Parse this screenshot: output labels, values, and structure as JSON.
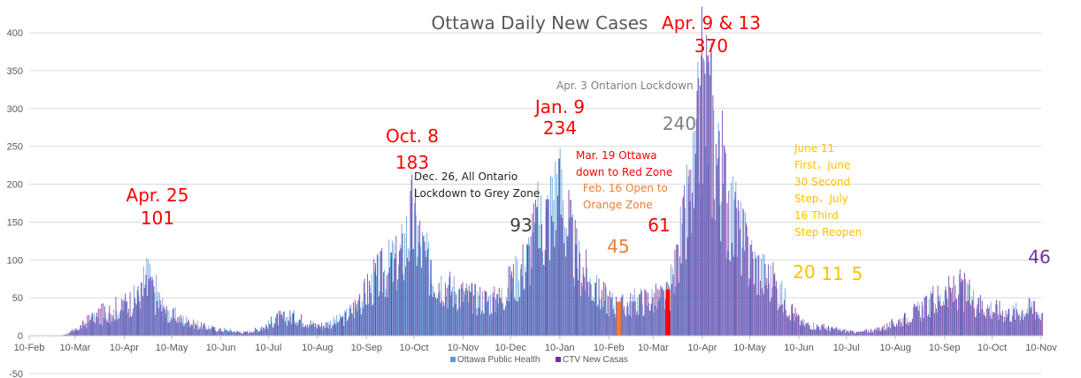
{
  "colors": {
    "ottawa": "#5b9bd5",
    "ctv": "#7030a0",
    "red": "#ff0000",
    "orange": "#ed7d31",
    "gold": "#ffc000",
    "gray": "#595959",
    "black": "#222222",
    "grid": "#d9d9d9"
  },
  "chart_data": {
    "type": "bar",
    "title": "Ottawa Daily New Cases",
    "ylim": [
      -50,
      400
    ],
    "yticks": [
      -50,
      0,
      50,
      100,
      150,
      200,
      250,
      300,
      350,
      400
    ],
    "xlim": [
      "2020-02-10",
      "2021-11-10"
    ],
    "xticks": [
      {
        "date": "2020-02-10",
        "label": "10-Feb"
      },
      {
        "date": "2020-03-10",
        "label": "10-Mar"
      },
      {
        "date": "2020-04-10",
        "label": "10-Apr"
      },
      {
        "date": "2020-05-10",
        "label": "10-May"
      },
      {
        "date": "2020-06-10",
        "label": "10-Jun"
      },
      {
        "date": "2020-07-10",
        "label": "10-Jul"
      },
      {
        "date": "2020-08-10",
        "label": "10-Aug"
      },
      {
        "date": "2020-09-10",
        "label": "10-Sep"
      },
      {
        "date": "2020-10-10",
        "label": "10-Oct"
      },
      {
        "date": "2020-11-10",
        "label": "10-Nov"
      },
      {
        "date": "2020-12-10",
        "label": "10-Dec"
      },
      {
        "date": "2021-01-10",
        "label": "10-Jan"
      },
      {
        "date": "2021-02-10",
        "label": "10-Feb"
      },
      {
        "date": "2021-03-10",
        "label": "10-Mar"
      },
      {
        "date": "2021-04-10",
        "label": "10-Apr"
      },
      {
        "date": "2021-05-10",
        "label": "10-May"
      },
      {
        "date": "2021-06-10",
        "label": "10-Jun"
      },
      {
        "date": "2021-07-10",
        "label": "10-Jul"
      },
      {
        "date": "2021-08-10",
        "label": "10-Aug"
      },
      {
        "date": "2021-09-10",
        "label": "10-Sep"
      },
      {
        "date": "2021-10-10",
        "label": "10-Oct"
      },
      {
        "date": "2021-11-10",
        "label": "10-Nov"
      }
    ],
    "grid": true,
    "legend_position": "bottom",
    "series": [
      {
        "name": "Ottawa Public Health",
        "color": "#5b9bd5",
        "points": [
          [
            "2020-02-10",
            0
          ],
          [
            "2020-03-01",
            0
          ],
          [
            "2020-03-10",
            10
          ],
          [
            "2020-03-20",
            25
          ],
          [
            "2020-03-31",
            30
          ],
          [
            "2020-04-10",
            45
          ],
          [
            "2020-04-18",
            60
          ],
          [
            "2020-04-25",
            101
          ],
          [
            "2020-05-05",
            40
          ],
          [
            "2020-05-20",
            22
          ],
          [
            "2020-06-05",
            12
          ],
          [
            "2020-06-25",
            5
          ],
          [
            "2020-07-05",
            10
          ],
          [
            "2020-07-15",
            25
          ],
          [
            "2020-07-25",
            30
          ],
          [
            "2020-08-10",
            15
          ],
          [
            "2020-08-25",
            25
          ],
          [
            "2020-09-05",
            50
          ],
          [
            "2020-09-15",
            85
          ],
          [
            "2020-09-25",
            110
          ],
          [
            "2020-10-01",
            120
          ],
          [
            "2020-10-08",
            183
          ],
          [
            "2020-10-20",
            100
          ],
          [
            "2020-11-01",
            75
          ],
          [
            "2020-11-15",
            60
          ],
          [
            "2020-12-01",
            55
          ],
          [
            "2020-12-10",
            80
          ],
          [
            "2020-12-20",
            120
          ],
          [
            "2020-12-26",
            170
          ],
          [
            "2021-01-01",
            180
          ],
          [
            "2021-01-09",
            234
          ],
          [
            "2021-01-20",
            120
          ],
          [
            "2021-02-01",
            70
          ],
          [
            "2021-02-16",
            45
          ],
          [
            "2021-03-01",
            55
          ],
          [
            "2021-03-19",
            61
          ],
          [
            "2021-03-25",
            120
          ],
          [
            "2021-04-01",
            210
          ],
          [
            "2021-04-05",
            240
          ],
          [
            "2021-04-09",
            370
          ],
          [
            "2021-04-13",
            370
          ],
          [
            "2021-04-20",
            260
          ],
          [
            "2021-04-30",
            180
          ],
          [
            "2021-05-10",
            120
          ],
          [
            "2021-05-25",
            80
          ],
          [
            "2021-06-05",
            40
          ],
          [
            "2021-06-11",
            20
          ],
          [
            "2021-06-30",
            11
          ],
          [
            "2021-07-16",
            5
          ],
          [
            "2021-08-01",
            10
          ],
          [
            "2021-08-15",
            25
          ],
          [
            "2021-09-01",
            50
          ],
          [
            "2021-09-10",
            60
          ],
          [
            "2021-09-20",
            70
          ],
          [
            "2021-10-01",
            50
          ],
          [
            "2021-10-20",
            35
          ],
          [
            "2021-11-05",
            46
          ],
          [
            "2021-11-10",
            30
          ]
        ]
      },
      {
        "name": "CTV New Casas",
        "color": "#7030a0",
        "points": [
          [
            "2020-02-10",
            0
          ],
          [
            "2020-03-01",
            0
          ],
          [
            "2020-03-10",
            8
          ],
          [
            "2020-03-20",
            30
          ],
          [
            "2020-03-31",
            40
          ],
          [
            "2020-04-10",
            50
          ],
          [
            "2020-04-18",
            60
          ],
          [
            "2020-04-25",
            75
          ],
          [
            "2020-05-05",
            35
          ],
          [
            "2020-05-20",
            20
          ],
          [
            "2020-06-05",
            10
          ],
          [
            "2020-06-25",
            5
          ],
          [
            "2020-07-05",
            12
          ],
          [
            "2020-07-15",
            28
          ],
          [
            "2020-07-25",
            30
          ],
          [
            "2020-08-10",
            15
          ],
          [
            "2020-08-25",
            25
          ],
          [
            "2020-09-05",
            55
          ],
          [
            "2020-09-15",
            90
          ],
          [
            "2020-09-25",
            110
          ],
          [
            "2020-10-01",
            115
          ],
          [
            "2020-10-08",
            183
          ],
          [
            "2020-10-20",
            100
          ],
          [
            "2020-11-01",
            75
          ],
          [
            "2020-11-15",
            60
          ],
          [
            "2020-12-01",
            55
          ],
          [
            "2020-12-10",
            85
          ],
          [
            "2020-12-20",
            120
          ],
          [
            "2020-12-26",
            170
          ],
          [
            "2021-01-01",
            180
          ],
          [
            "2021-01-09",
            234
          ],
          [
            "2021-01-20",
            120
          ],
          [
            "2021-02-01",
            70
          ],
          [
            "2021-02-16",
            45
          ],
          [
            "2021-03-01",
            55
          ],
          [
            "2021-03-19",
            61
          ],
          [
            "2021-03-25",
            120
          ],
          [
            "2021-04-01",
            200
          ],
          [
            "2021-04-05",
            240
          ],
          [
            "2021-04-09",
            370
          ],
          [
            "2021-04-13",
            370
          ],
          [
            "2021-04-20",
            270
          ],
          [
            "2021-04-30",
            190
          ],
          [
            "2021-05-10",
            120
          ],
          [
            "2021-05-25",
            80
          ],
          [
            "2021-06-05",
            40
          ],
          [
            "2021-06-11",
            20
          ],
          [
            "2021-06-30",
            11
          ],
          [
            "2021-07-16",
            5
          ],
          [
            "2021-08-01",
            12
          ],
          [
            "2021-08-15",
            28
          ],
          [
            "2021-09-01",
            55
          ],
          [
            "2021-09-10",
            65
          ],
          [
            "2021-09-20",
            75
          ],
          [
            "2021-10-01",
            50
          ],
          [
            "2021-10-20",
            35
          ],
          [
            "2021-11-05",
            46
          ],
          [
            "2021-11-10",
            30
          ]
        ]
      }
    ],
    "highlight_bars": [
      {
        "date": "2021-02-16",
        "value": 45,
        "color": "#ed7d31"
      },
      {
        "date": "2021-03-19",
        "value": 61,
        "color": "#ff0000"
      }
    ],
    "annotations": [
      {
        "key": "apr25",
        "lines": [
          "Apr. 25",
          "101"
        ],
        "color": "#ff0000",
        "size": 20
      },
      {
        "key": "oct8",
        "lines": [
          "Oct. 8",
          "183"
        ],
        "color": "#ff0000",
        "size": 20
      },
      {
        "key": "dec26",
        "lines": [
          "Dec. 26, All Ontario",
          "Lockdown to Grey Zone"
        ],
        "color": "#222222",
        "size": 12
      },
      {
        "key": "v93",
        "lines": [
          "93"
        ],
        "color": "#404040",
        "size": 20
      },
      {
        "key": "jan9",
        "lines": [
          "Jan. 9",
          "234"
        ],
        "color": "#ff0000",
        "size": 20
      },
      {
        "key": "mar19",
        "lines": [
          "Mar. 19 Ottawa",
          "down to Red Zone"
        ],
        "color": "#ff0000",
        "size": 12
      },
      {
        "key": "feb16",
        "lines": [
          "Feb. 16 Open to",
          "Orange Zone"
        ],
        "color": "#ed7d31",
        "size": 12
      },
      {
        "key": "v45",
        "lines": [
          "45"
        ],
        "color": "#ed7d31",
        "size": 20
      },
      {
        "key": "v61",
        "lines": [
          "61"
        ],
        "color": "#ff0000",
        "size": 20
      },
      {
        "key": "apr3",
        "lines": [
          "Apr. 3 Ontarion Lockdown"
        ],
        "color": "#7f7f7f",
        "size": 12
      },
      {
        "key": "v240",
        "lines": [
          "240"
        ],
        "color": "#7f7f7f",
        "size": 20
      },
      {
        "key": "apr913",
        "lines": [
          "Apr. 9 & 13",
          "370"
        ],
        "color": "#ff0000",
        "size": 20
      },
      {
        "key": "jun11",
        "lines": [
          "June 11",
          "First，June",
          "30 Second",
          "Step，July",
          "16 Third",
          "Step Reopen"
        ],
        "color": "#ffc000",
        "size": 12
      },
      {
        "key": "v20",
        "lines": [
          "20"
        ],
        "color": "#ffc000",
        "size": 20
      },
      {
        "key": "v11",
        "lines": [
          "11"
        ],
        "color": "#ffc000",
        "size": 20
      },
      {
        "key": "v5",
        "lines": [
          "5"
        ],
        "color": "#ffc000",
        "size": 20
      },
      {
        "key": "v46",
        "lines": [
          "46"
        ],
        "color": "#7030a0",
        "size": 20
      }
    ]
  }
}
